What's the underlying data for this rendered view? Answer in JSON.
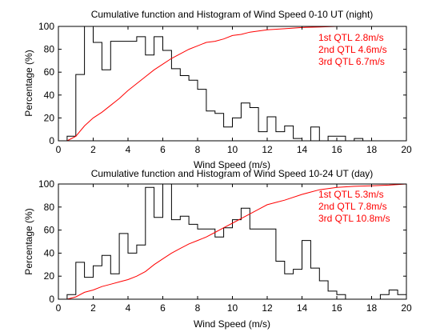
{
  "chart_data": [
    {
      "type": "line",
      "title": "Cumulative function and Histogram of Wind Speed 0-10 UT (night)",
      "xlabel": "Wind Speed (m/s)",
      "ylabel": "Percentage (%)",
      "xlim": [
        0,
        20
      ],
      "ylim": [
        0,
        100
      ],
      "xticks": [
        "0",
        "2",
        "4",
        "6",
        "8",
        "10",
        "12",
        "14",
        "16",
        "18",
        "20"
      ],
      "yticks": [
        "0",
        "20",
        "40",
        "60",
        "80",
        "100"
      ],
      "grid": false,
      "annotations": [
        "1st QTL 2.8m/s",
        "2nd QTL 4.6m/s",
        "3rd QTL 6.7m/s"
      ],
      "annotation_color": "#ff0000",
      "series": [
        {
          "kind": "histogram-stairs",
          "color": "#000000",
          "x": [
            0,
            0.5,
            1,
            1.5,
            2,
            2.5,
            3,
            3.5,
            4,
            4.5,
            5,
            5.5,
            6,
            6.5,
            7,
            7.5,
            8,
            8.5,
            9,
            9.5,
            10,
            10.5,
            11,
            11.5,
            12,
            12.5,
            13,
            13.5,
            14,
            14.5,
            15,
            15.5,
            16,
            16.5,
            17,
            17.5,
            18,
            18.5,
            19,
            19.5,
            20
          ],
          "values": [
            0,
            4,
            58,
            100,
            86,
            62,
            87,
            87,
            87,
            91,
            75,
            91,
            79,
            63,
            57,
            53,
            45,
            26,
            24,
            12,
            20,
            33,
            29,
            8,
            21,
            8,
            13,
            2,
            0,
            12,
            0,
            4,
            4,
            0,
            2,
            0,
            0,
            0,
            0,
            0
          ]
        },
        {
          "kind": "cumulative",
          "color": "#ff0000",
          "x": [
            0.5,
            1,
            1.5,
            2,
            2.5,
            3,
            3.5,
            4,
            4.5,
            5,
            5.5,
            6,
            6.5,
            7,
            7.5,
            8,
            8.5,
            9,
            9.5,
            10,
            10.5,
            11,
            11.5,
            12,
            13,
            14,
            15,
            16,
            17,
            18,
            20
          ],
          "values": [
            0,
            4,
            13,
            20,
            25,
            31,
            37,
            44,
            50,
            56,
            62,
            67,
            72,
            76,
            80,
            83,
            86,
            87,
            89,
            92,
            93,
            95,
            96,
            97,
            98,
            99,
            99.5,
            100,
            100,
            100,
            100
          ]
        }
      ]
    },
    {
      "type": "line",
      "title": "Cumulative function and Histogram of Wind Speed 10-24 UT (day)",
      "xlabel": "Wind Speed (m/s)",
      "ylabel": "Percentage (%)",
      "xlim": [
        0,
        20
      ],
      "ylim": [
        0,
        100
      ],
      "xticks": [
        "0",
        "2",
        "4",
        "6",
        "8",
        "10",
        "12",
        "14",
        "16",
        "18",
        "20"
      ],
      "yticks": [
        "0",
        "20",
        "40",
        "60",
        "80",
        "100"
      ],
      "grid": false,
      "annotations": [
        "1st QTL 5.3m/s",
        "2nd QTL 7.8m/s",
        "3rd QTL 10.8m/s"
      ],
      "annotation_color": "#ff0000",
      "series": [
        {
          "kind": "histogram-stairs",
          "color": "#000000",
          "x": [
            0,
            0.5,
            1,
            1.5,
            2,
            2.5,
            3,
            3.5,
            4,
            4.5,
            5,
            5.5,
            6,
            6.5,
            7,
            7.5,
            8,
            8.5,
            9,
            9.5,
            10,
            10.5,
            11,
            11.5,
            12,
            12.5,
            13,
            13.5,
            14,
            14.5,
            15,
            15.5,
            16,
            16.5,
            17,
            17.5,
            18,
            18.5,
            19,
            19.5,
            20
          ],
          "values": [
            0,
            4,
            32,
            19,
            29,
            38,
            22,
            57,
            40,
            47,
            97,
            71,
            100,
            69,
            72,
            65,
            61,
            61,
            54,
            62,
            69,
            79,
            61,
            61,
            61,
            33,
            22,
            26,
            51,
            27,
            16,
            7,
            4,
            0,
            0,
            0,
            0,
            4,
            8,
            4
          ]
        },
        {
          "kind": "cumulative",
          "color": "#ff0000",
          "x": [
            0.5,
            1,
            1.5,
            2,
            2.5,
            3,
            3.5,
            4,
            4.5,
            5,
            5.5,
            6,
            6.5,
            7,
            7.5,
            8,
            8.5,
            9,
            9.5,
            10,
            10.5,
            11,
            11.5,
            12,
            12.5,
            13,
            14,
            15,
            16,
            17,
            18,
            19,
            20
          ],
          "values": [
            0,
            2,
            6,
            8,
            11,
            13,
            15,
            17,
            20,
            24,
            30,
            35,
            40,
            44,
            48,
            51,
            54,
            58,
            62,
            66,
            70,
            74,
            78,
            82,
            84,
            86,
            91,
            95,
            97,
            98,
            98.5,
            99,
            100
          ]
        }
      ]
    }
  ]
}
